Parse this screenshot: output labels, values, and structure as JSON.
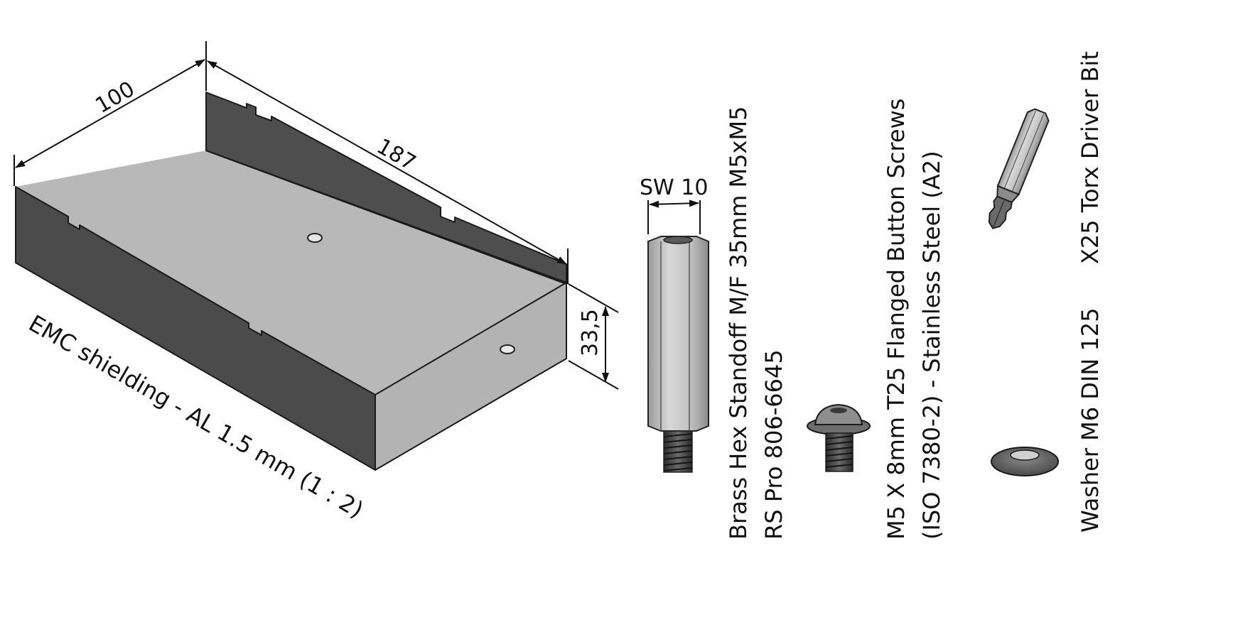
{
  "tray": {
    "dim_width": "100",
    "dim_length": "187",
    "dim_height": "33,5",
    "caption": "EMC shielding - AL 1.5 mm (1 : 2)"
  },
  "standoff": {
    "dim_wrench": "SW 10",
    "title": "Brass Hex Standoff M/F 35mm M5xM5",
    "part_number": "RS Pro 806-6645"
  },
  "screw": {
    "title": "M5 X 8mm T25 Flanged Button Screws",
    "spec": "(ISO 7380-2) - Stainless Steel (A2)"
  },
  "bit": {
    "title": "X25 Torx Driver Bit"
  },
  "washer": {
    "title": "Washer M6 DIN 125"
  },
  "colors": {
    "wall_dark": "#4d4d4d",
    "floor_light": "#b5b5b5",
    "standoff_body": "#c4c4c4",
    "thread": "#3a3a3a",
    "line": "#111111"
  }
}
